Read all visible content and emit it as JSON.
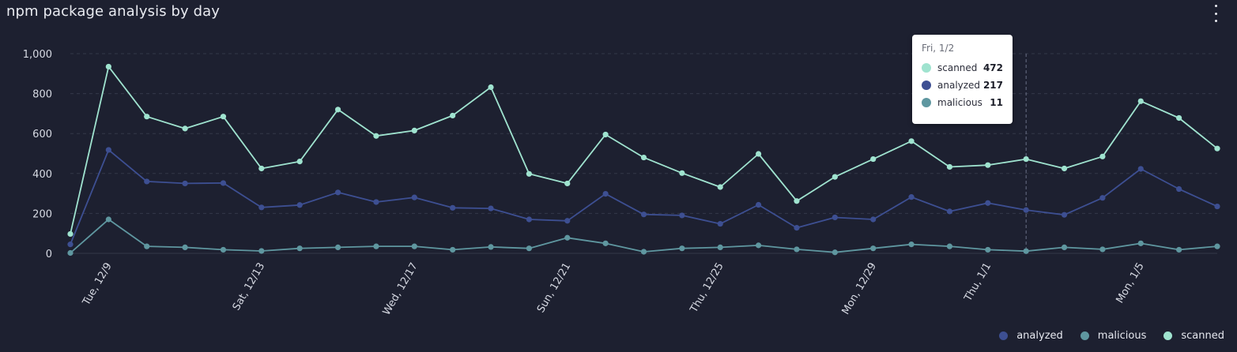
{
  "header": {
    "title": "npm package analysis by day",
    "menu_icon": "more-vertical-icon"
  },
  "colors": {
    "scanned": "#9fe3cf",
    "analyzed": "#3d4f92",
    "malicious": "#5f97a0",
    "grid": "#343849",
    "crosshair": "#6b7086"
  },
  "chart_data": {
    "type": "line",
    "title": "npm package analysis by day",
    "xlabel": "",
    "ylabel": "",
    "ylim": [
      0,
      1000
    ],
    "y_ticks": [
      0,
      200,
      400,
      600,
      800,
      1000
    ],
    "y_tick_labels": [
      "0",
      "200",
      "400",
      "600",
      "800",
      "1,000"
    ],
    "grid": true,
    "legend_position": "bottom-right",
    "x": [
      "12/8",
      "12/9",
      "12/10",
      "12/11",
      "12/12",
      "12/13",
      "12/14",
      "12/15",
      "12/16",
      "12/17",
      "12/18",
      "12/19",
      "12/20",
      "12/21",
      "12/22",
      "12/23",
      "12/24",
      "12/25",
      "12/26",
      "12/27",
      "12/28",
      "12/29",
      "12/30",
      "12/31",
      "1/1",
      "1/2",
      "1/3",
      "1/4",
      "1/5",
      "1/6",
      "1/7"
    ],
    "x_tick_labels": [
      {
        "index": 1,
        "label": "Tue, 12/9"
      },
      {
        "index": 5,
        "label": "Sat, 12/13"
      },
      {
        "index": 9,
        "label": "Wed, 12/17"
      },
      {
        "index": 13,
        "label": "Sun, 12/21"
      },
      {
        "index": 17,
        "label": "Thu, 12/25"
      },
      {
        "index": 21,
        "label": "Mon, 12/29"
      },
      {
        "index": 24,
        "label": "Thu, 1/1"
      },
      {
        "index": 28,
        "label": "Mon, 1/5"
      }
    ],
    "series": [
      {
        "name": "scanned",
        "color": "#9fe3cf",
        "values": [
          97,
          935,
          685,
          625,
          685,
          425,
          460,
          720,
          588,
          615,
          690,
          832,
          398,
          350,
          595,
          480,
          402,
          332,
          498,
          262,
          383,
          472,
          562,
          433,
          442,
          472,
          425,
          485,
          762,
          678,
          525
        ]
      },
      {
        "name": "analyzed",
        "color": "#3d4f92",
        "values": [
          45,
          518,
          360,
          350,
          352,
          230,
          242,
          305,
          257,
          280,
          228,
          225,
          170,
          163,
          298,
          195,
          190,
          148,
          243,
          128,
          180,
          170,
          282,
          210,
          252,
          217,
          193,
          278,
          423,
          322,
          235
        ]
      },
      {
        "name": "malicious",
        "color": "#5f97a0",
        "values": [
          2,
          170,
          35,
          30,
          18,
          12,
          25,
          30,
          35,
          35,
          18,
          32,
          25,
          78,
          50,
          8,
          25,
          30,
          40,
          20,
          5,
          25,
          45,
          35,
          18,
          11,
          30,
          20,
          50,
          18,
          35
        ]
      }
    ],
    "hover_index": 25
  },
  "tooltip": {
    "date": "Fri, 1/2",
    "rows": [
      {
        "name": "scanned",
        "value": "472",
        "color": "#9fe3cf"
      },
      {
        "name": "analyzed",
        "value": "217",
        "color": "#3d4f92"
      },
      {
        "name": "malicious",
        "value": "11",
        "color": "#5f97a0"
      }
    ]
  },
  "legend": {
    "items": [
      {
        "name": "analyzed",
        "color": "#3d4f92"
      },
      {
        "name": "malicious",
        "color": "#5f97a0"
      },
      {
        "name": "scanned",
        "color": "#9fe3cf"
      }
    ]
  }
}
